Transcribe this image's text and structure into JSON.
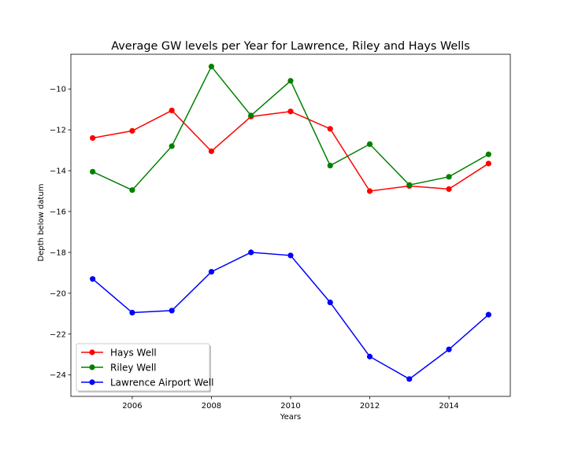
{
  "chart_data": {
    "type": "line",
    "title": "Average GW levels per Year for Lawrence, Riley and Hays Wells",
    "xlabel": "Years",
    "ylabel": "Depth below datum",
    "x": [
      2005,
      2006,
      2007,
      2008,
      2009,
      2010,
      2011,
      2012,
      2013,
      2014,
      2015
    ],
    "xlim": [
      2004.45,
      2015.55
    ],
    "ylim": [
      -25.05,
      -8.3
    ],
    "x_ticks": [
      2006,
      2008,
      2010,
      2012,
      2014
    ],
    "y_ticks": [
      -24,
      -22,
      -20,
      -18,
      -16,
      -14,
      -12,
      -10
    ],
    "grid": false,
    "legend": "lower-left",
    "series": [
      {
        "name": "Hays Well",
        "color": "#ff0000",
        "values": [
          -12.4,
          -12.05,
          -11.05,
          -13.05,
          -11.35,
          -11.1,
          -11.95,
          -15.0,
          -14.75,
          -14.9,
          -13.65
        ]
      },
      {
        "name": "Riley Well",
        "color": "#008000",
        "values": [
          -14.05,
          -14.95,
          -12.8,
          -8.9,
          -11.3,
          -9.6,
          -13.75,
          -12.7,
          -14.7,
          -14.3,
          -13.2
        ]
      },
      {
        "name": "Lawrence Airport Well",
        "color": "#0000ff",
        "values": [
          -19.3,
          -20.95,
          -20.85,
          -18.95,
          -18.0,
          -18.15,
          -20.45,
          -23.1,
          -24.2,
          -22.75,
          -21.05
        ]
      }
    ]
  }
}
